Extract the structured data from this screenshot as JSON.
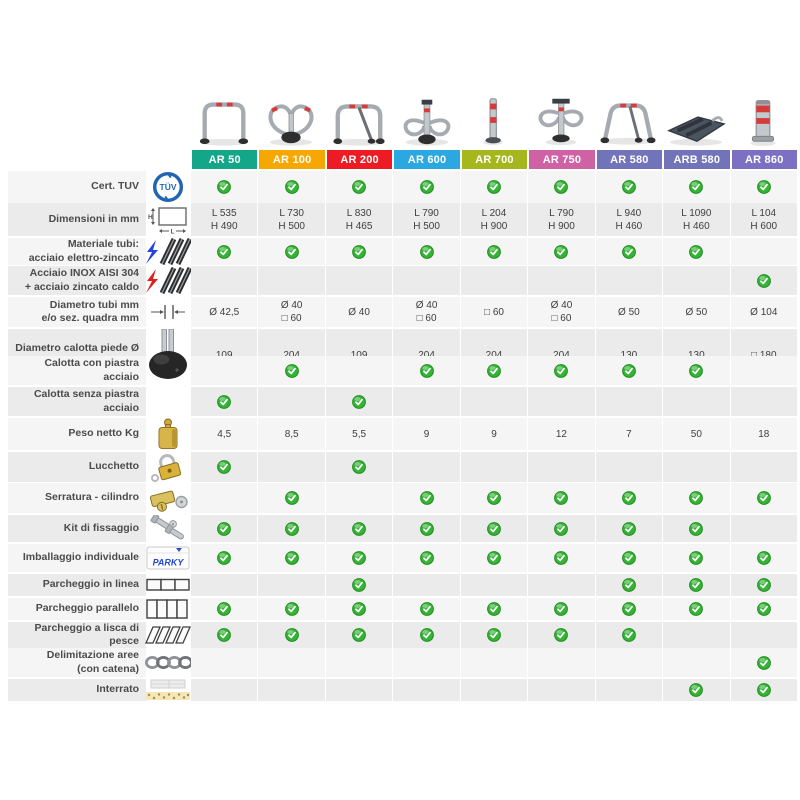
{
  "tuv_label": "TÜV",
  "packaging_brand": "PARKY",
  "dim_h_label": "H",
  "dim_l_label": "L",
  "check_color": "#35b335",
  "products": [
    {
      "name": "AR 50",
      "color": "#14a689"
    },
    {
      "name": "AR 100",
      "color": "#f6a800"
    },
    {
      "name": "AR 200",
      "color": "#ee1b24"
    },
    {
      "name": "AR 600",
      "color": "#2aa8df"
    },
    {
      "name": "AR 700",
      "color": "#a6b61d"
    },
    {
      "name": "AR 750",
      "color": "#ce62a5"
    },
    {
      "name": "AR 580",
      "color": "#7174b8"
    },
    {
      "name": "ARB 580",
      "color": "#7174b8"
    },
    {
      "name": "AR 860",
      "color": "#7b70c2"
    }
  ],
  "rows": [
    {
      "label": "Cert. TUV",
      "icon": "tuv-icon",
      "type": "check",
      "cells": [
        true,
        true,
        true,
        true,
        true,
        true,
        true,
        true,
        true
      ]
    },
    {
      "label": "Dimensioni in mm",
      "icon": "dimensions-icon",
      "type": "text",
      "cells": [
        "L 535\nH 490",
        "L 730\nH 500",
        "L 830\nH 465",
        "L 790\nH 500",
        "L 204\nH 900",
        "L 790\nH 900",
        "L 940\nH 460",
        "L 1090\nH 460",
        "L 104\nH 600"
      ]
    },
    {
      "label": "Materiale tubi:\nacciaio elettro-zincato",
      "icon": "steel-tubes-blue-icon",
      "type": "check",
      "cells": [
        true,
        true,
        true,
        true,
        true,
        true,
        true,
        true,
        false
      ]
    },
    {
      "label": "Acciaio INOX AISI 304\n+ acciaio zincato caldo",
      "icon": "steel-tubes-red-icon",
      "type": "check",
      "cells": [
        false,
        false,
        false,
        false,
        false,
        false,
        false,
        false,
        true
      ]
    },
    {
      "label": "Diametro tubi mm\ne/o sez. quadra mm",
      "icon": "tube-diameter-icon",
      "type": "text",
      "cells": [
        "Ø 42,5",
        "Ø 40\n□ 60",
        "Ø 40",
        "Ø 40\n□ 60",
        "□ 60",
        "Ø 40\n□ 60",
        "Ø 50",
        "Ø 50",
        "Ø 104"
      ]
    },
    {
      "label": "Diametro calotta piede Ø mm",
      "icon": "foot-cap-icon",
      "type": "text",
      "cells": [
        "109",
        "204",
        "109",
        "204",
        "204",
        "204",
        "130",
        "130",
        "□ 180"
      ]
    },
    {
      "label": "Calotta con piastra acciaio",
      "icon": "",
      "type": "check",
      "cells": [
        false,
        true,
        false,
        true,
        true,
        true,
        true,
        true,
        false
      ]
    },
    {
      "label": "Calotta senza piastra acciaio",
      "icon": "",
      "type": "check",
      "cells": [
        true,
        false,
        true,
        false,
        false,
        false,
        false,
        false,
        false
      ]
    },
    {
      "label": "Peso netto Kg",
      "icon": "weight-icon",
      "type": "text",
      "cells": [
        "4,5",
        "8,5",
        "5,5",
        "9",
        "9",
        "12",
        "7",
        "50",
        "18"
      ]
    },
    {
      "label": "Lucchetto",
      "icon": "padlock-icon",
      "type": "check",
      "cells": [
        true,
        false,
        true,
        false,
        false,
        false,
        false,
        false,
        false
      ]
    },
    {
      "label": "Serratura - cilindro",
      "icon": "cylinder-lock-icon",
      "type": "check",
      "cells": [
        false,
        true,
        false,
        true,
        true,
        true,
        true,
        true,
        true
      ]
    },
    {
      "label": "Kit di fissaggio",
      "icon": "fixing-kit-icon",
      "type": "check",
      "cells": [
        true,
        true,
        true,
        true,
        true,
        true,
        true,
        true,
        false
      ]
    },
    {
      "label": "Imballaggio individuale",
      "icon": "packaging-icon",
      "type": "check",
      "cells": [
        true,
        true,
        true,
        true,
        true,
        true,
        true,
        true,
        true
      ]
    },
    {
      "label": "Parcheggio in linea",
      "icon": "parking-inline-icon",
      "type": "check",
      "cells": [
        false,
        false,
        true,
        false,
        false,
        false,
        true,
        true,
        true
      ]
    },
    {
      "label": "Parcheggio parallelo",
      "icon": "parking-parallel-icon",
      "type": "check",
      "cells": [
        true,
        true,
        true,
        true,
        true,
        true,
        true,
        true,
        true
      ]
    },
    {
      "label": "Parcheggio a lisca di pesce",
      "icon": "parking-herringbone-icon",
      "type": "check",
      "cells": [
        true,
        true,
        true,
        true,
        true,
        true,
        true,
        false,
        false
      ]
    },
    {
      "label": "Delimitazione aree\n(con catena)",
      "icon": "chain-icon",
      "type": "check",
      "cells": [
        false,
        false,
        false,
        false,
        false,
        false,
        false,
        false,
        true
      ]
    },
    {
      "label": "Interrato",
      "icon": "buried-icon",
      "type": "check",
      "cells": [
        false,
        false,
        false,
        false,
        false,
        false,
        false,
        true,
        true
      ]
    }
  ]
}
